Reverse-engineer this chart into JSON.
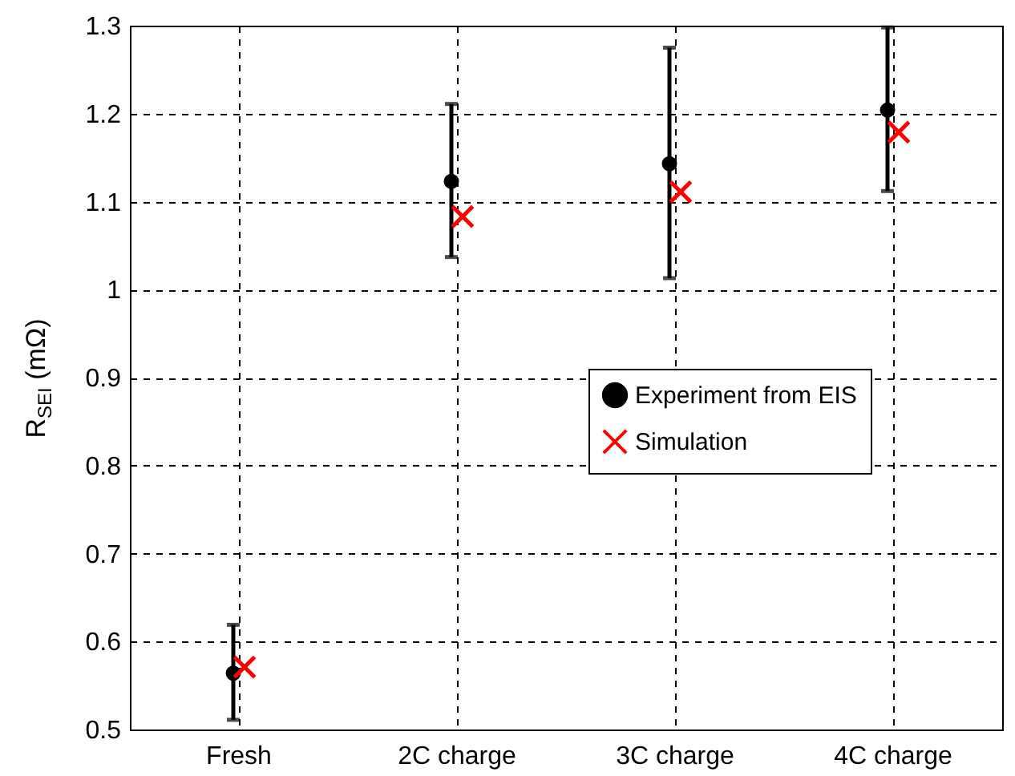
{
  "chart_data": {
    "type": "scatter",
    "ylabel": "R$_{SEI}$ (mΩ)",
    "categories": [
      "Fresh",
      "2C charge",
      "3C charge",
      "4C charge"
    ],
    "series": [
      {
        "name": "Experiment from EIS",
        "color": "#000000",
        "marker": "circle",
        "values": [
          0.564,
          1.123,
          1.143,
          1.204
        ],
        "errors": [
          [
            0.511,
            0.619
          ],
          [
            1.037,
            1.211
          ],
          [
            1.013,
            1.275
          ],
          [
            1.112,
            1.298
          ]
        ]
      },
      {
        "name": "Simulation",
        "color": "#ff0000",
        "marker": "cross",
        "values": [
          0.571,
          1.083,
          1.111,
          1.179
        ]
      }
    ],
    "ylim": [
      0.5,
      1.3
    ],
    "yticks": [
      0.5,
      0.6,
      0.7,
      0.8,
      0.9,
      1,
      1.1,
      1.2,
      1.3
    ],
    "grid": true,
    "legend": "right"
  }
}
